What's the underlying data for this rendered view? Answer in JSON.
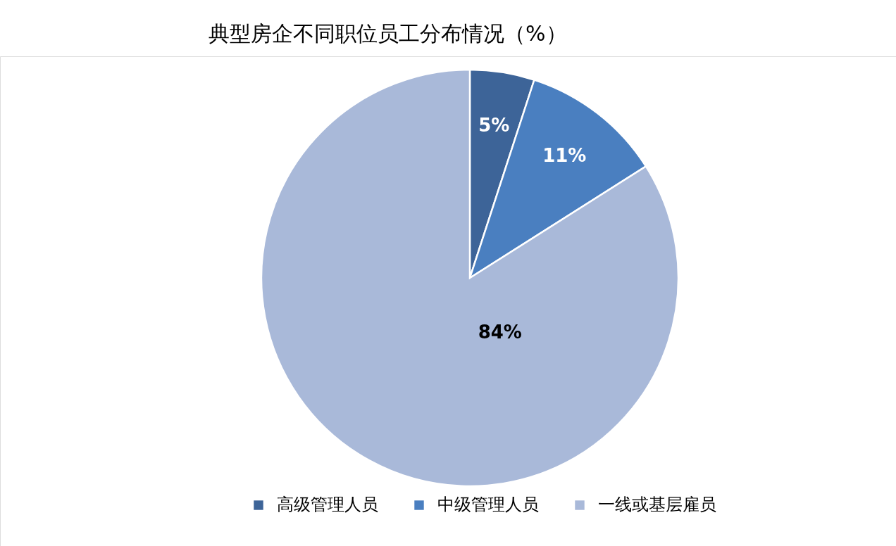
{
  "chart_data": {
    "type": "pie",
    "title": "典型房企不同职位员工分布情况（%）",
    "categories": [
      "高级管理人员",
      "中级管理人员",
      "一线或基层雇员"
    ],
    "values": [
      5,
      11,
      84
    ],
    "colors": [
      "#3d6498",
      "#4a7fc0",
      "#a9b9d9"
    ],
    "value_labels": [
      "5%",
      "11%",
      "84%"
    ],
    "legend": "bottom"
  }
}
